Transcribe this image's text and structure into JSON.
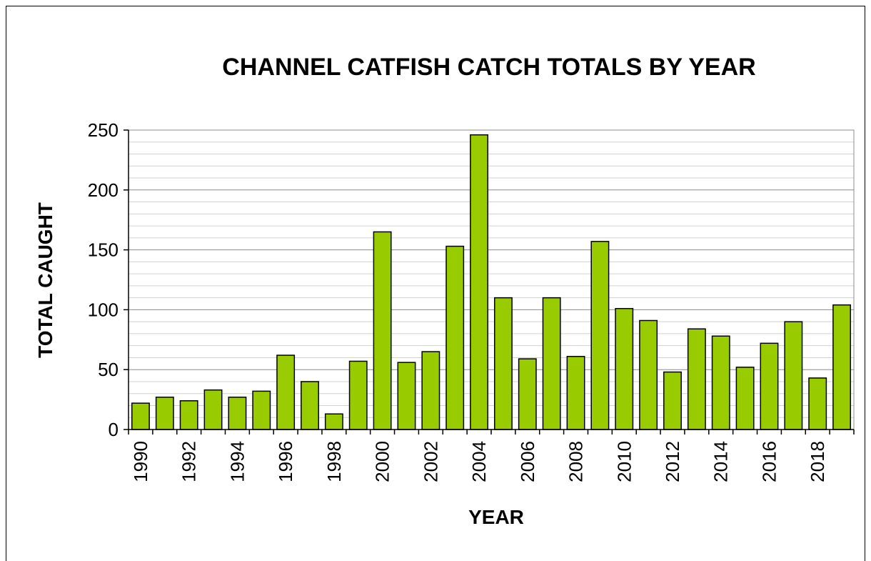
{
  "chart_data": {
    "type": "bar",
    "title": "CHANNEL CATFISH CATCH TOTALS BY YEAR",
    "xlabel": "YEAR",
    "ylabel": "TOTAL CAUGHT",
    "categories": [
      1990,
      1991,
      1992,
      1993,
      1994,
      1995,
      1996,
      1997,
      1998,
      1999,
      2000,
      2001,
      2002,
      2003,
      2004,
      2005,
      2006,
      2007,
      2008,
      2009,
      2010,
      2011,
      2012,
      2013,
      2014,
      2015,
      2016,
      2017,
      2018,
      2019
    ],
    "x_tick_labels": [
      "1990",
      "1992",
      "1994",
      "1996",
      "1998",
      "2000",
      "2002",
      "2004",
      "2006",
      "2008",
      "2010",
      "2012",
      "2014",
      "2016",
      "2018"
    ],
    "values": [
      22,
      27,
      24,
      33,
      27,
      32,
      62,
      40,
      13,
      57,
      165,
      56,
      65,
      153,
      246,
      110,
      59,
      110,
      61,
      157,
      101,
      91,
      48,
      84,
      78,
      52,
      72,
      90,
      43,
      104
    ],
    "ylim": [
      0,
      250
    ],
    "y_ticks": [
      0,
      50,
      100,
      150,
      200,
      250
    ],
    "y_minor_step": 10,
    "grid": true,
    "bar_color": "#99cc00",
    "bar_edge_color": "#000000"
  }
}
